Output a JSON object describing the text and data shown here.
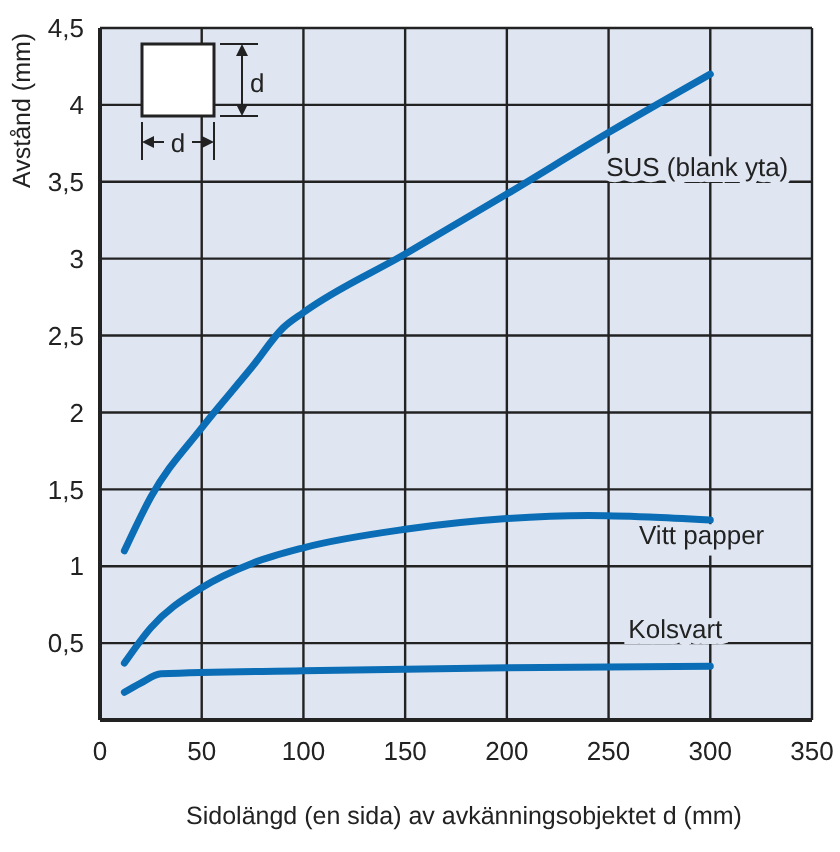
{
  "chart_data": {
    "type": "line",
    "xlabel": "Sidolängd (en sida) av avkänningsobjektet d (mm)",
    "ylabel": "Avstånd (mm)",
    "xlim": [
      0,
      350
    ],
    "xticks": [
      0,
      50,
      100,
      150,
      200,
      250,
      300,
      350
    ],
    "ylim": [
      0,
      4.5
    ],
    "yticks": [
      {
        "value": 0.5,
        "label": "0,5"
      },
      1,
      {
        "value": 1.5,
        "label": "1,5"
      },
      2,
      {
        "value": 2.5,
        "label": "2,5"
      },
      3,
      {
        "value": 3.5,
        "label": "3,5"
      },
      4,
      {
        "value": 4.5,
        "label": "4,5"
      }
    ],
    "grid": true,
    "legend": false,
    "marker": "none",
    "line_style": "solid",
    "annotations": [
      "d",
      "d"
    ],
    "series": [
      {
        "name": "SUS (blank yta)",
        "color": "#0a6db5",
        "x": [
          12,
          25,
          50,
          75,
          90,
          100,
          150,
          200,
          250,
          300
        ],
        "values": [
          1.1,
          1.45,
          1.9,
          2.3,
          2.55,
          2.65,
          3.03,
          3.42,
          3.82,
          4.2
        ]
      },
      {
        "name": "Vitt papper",
        "color": "#0a6db5",
        "x": [
          12,
          25,
          50,
          75,
          100,
          150,
          200,
          240,
          270,
          300
        ],
        "values": [
          0.37,
          0.6,
          0.86,
          1.02,
          1.12,
          1.24,
          1.31,
          1.33,
          1.32,
          1.3
        ]
      },
      {
        "name": "Kolsvart",
        "color": "#0a6db5",
        "x": [
          12,
          20,
          30,
          100,
          200,
          300
        ],
        "values": [
          0.18,
          0.24,
          0.3,
          0.32,
          0.34,
          0.35
        ]
      }
    ]
  }
}
